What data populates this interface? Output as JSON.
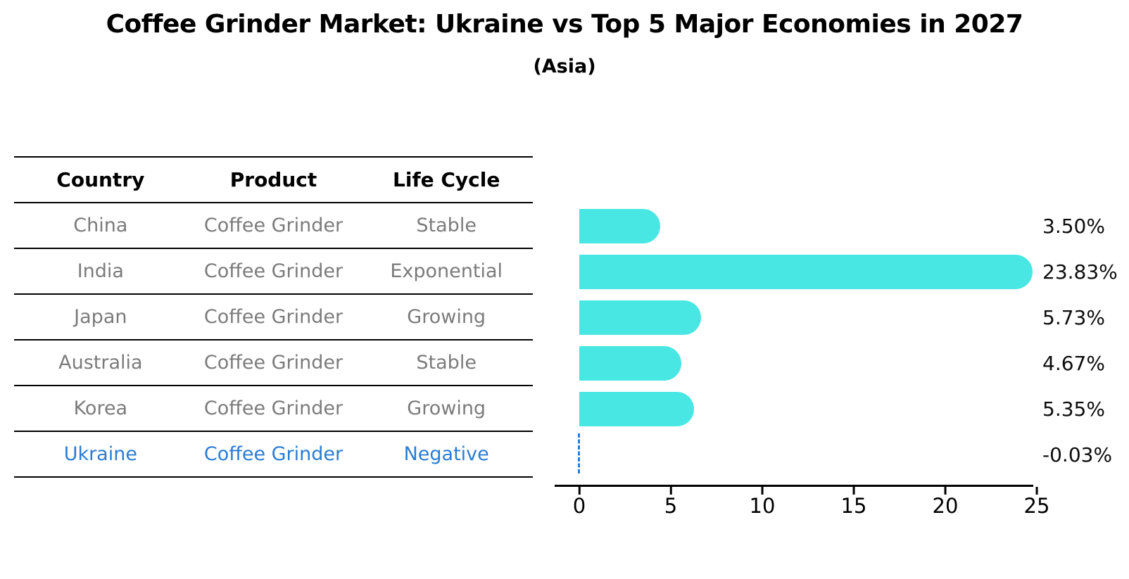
{
  "title": "Coffee Grinder Market: Ukraine vs Top 5 Major Economies in 2027",
  "subtitle": "(Asia)",
  "colors": {
    "bar": "#49E7E3",
    "highlight": "#2B7CD3",
    "muted_text": "#7b7b7b",
    "ink": "#000000"
  },
  "table": {
    "headers": [
      "Country",
      "Product",
      "Life Cycle"
    ],
    "rows": [
      {
        "country": "China",
        "product": "Coffee Grinder",
        "life_cycle": "Stable",
        "highlight": false
      },
      {
        "country": "India",
        "product": "Coffee Grinder",
        "life_cycle": "Exponential",
        "highlight": false
      },
      {
        "country": "Japan",
        "product": "Coffee Grinder",
        "life_cycle": "Growing",
        "highlight": false
      },
      {
        "country": "Australia",
        "product": "Coffee Grinder",
        "life_cycle": "Stable",
        "highlight": false
      },
      {
        "country": "Korea",
        "product": "Coffee Grinder",
        "life_cycle": "Growing",
        "highlight": false
      },
      {
        "country": "Ukraine",
        "product": "Coffee Grinder",
        "life_cycle": "Negative",
        "highlight": true
      }
    ]
  },
  "chart_data": {
    "type": "bar",
    "orientation": "horizontal",
    "title": "Coffee Grinder Market: Ukraine vs Top 5 Major Economies in 2027",
    "subtitle": "(Asia)",
    "categories": [
      "China",
      "India",
      "Japan",
      "Australia",
      "Korea",
      "Ukraine"
    ],
    "values": [
      3.5,
      23.83,
      5.73,
      4.67,
      5.35,
      -0.03
    ],
    "value_labels": [
      "3.50%",
      "23.83%",
      "5.73%",
      "4.67%",
      "5.35%",
      "-0.03%"
    ],
    "xlabel": "",
    "ylabel": "",
    "xlim": [
      0,
      25
    ],
    "xticks": [
      0,
      5,
      10,
      15,
      20,
      25
    ],
    "grid": false,
    "legend": false,
    "highlight_index": 5
  }
}
